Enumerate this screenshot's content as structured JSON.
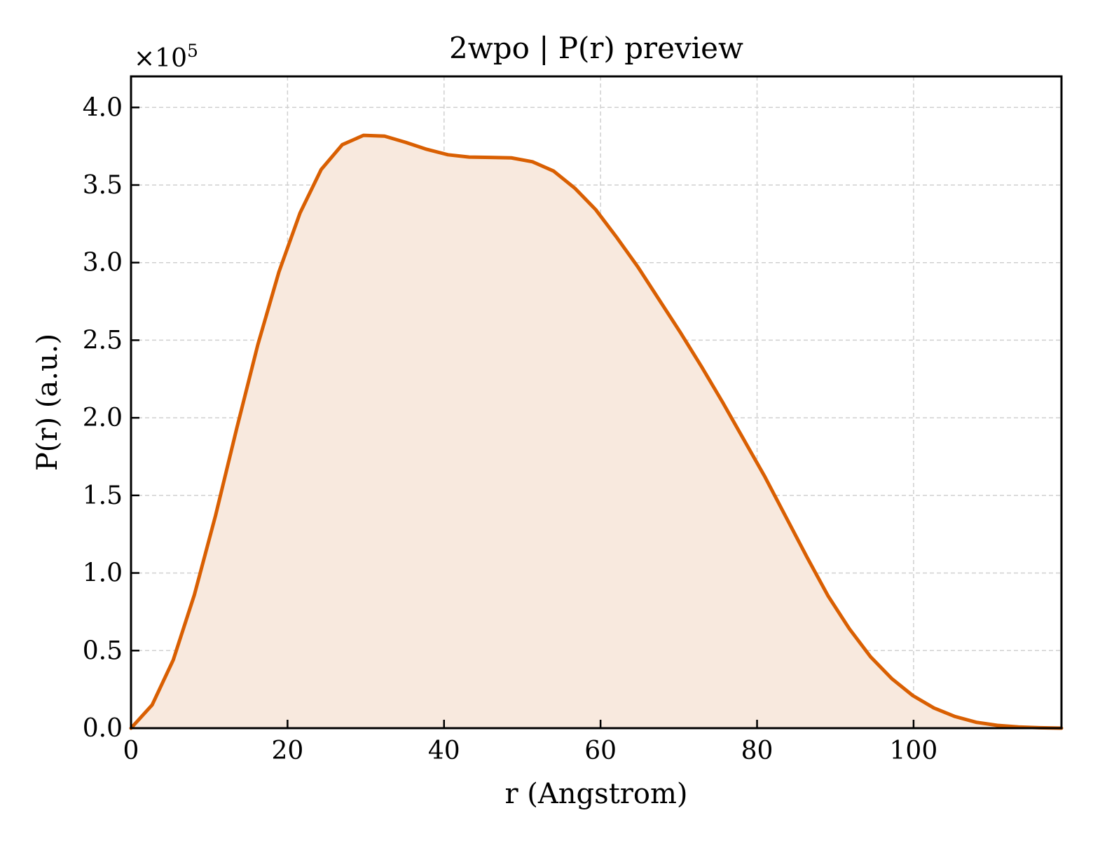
{
  "chart_data": {
    "type": "area",
    "title": "2wpo | P(r) preview",
    "xlabel": "r (Angstrom)",
    "ylabel": "P(r) (a.u.)",
    "y_multiplier_label": "×10",
    "y_multiplier_exponent": "5",
    "xlim": [
      0,
      118.9
    ],
    "ylim": [
      0,
      4.2
    ],
    "x_ticks": [
      0,
      20,
      40,
      60,
      80,
      100
    ],
    "x_tick_labels": [
      "0",
      "20",
      "40",
      "60",
      "80",
      "100"
    ],
    "y_ticks": [
      0.0,
      0.5,
      1.0,
      1.5,
      2.0,
      2.5,
      3.0,
      3.5,
      4.0
    ],
    "y_tick_labels": [
      "0.0",
      "0.5",
      "1.0",
      "1.5",
      "2.0",
      "2.5",
      "3.0",
      "3.5",
      "4.0"
    ],
    "grid": true,
    "line_color": "#d95f02",
    "fill_color": "#f8e9de",
    "series": [
      {
        "x": [
          0,
          2.7,
          5.4,
          8.1,
          10.8,
          13.5,
          16.2,
          18.9,
          21.6,
          24.3,
          27.0,
          29.7,
          32.4,
          35.1,
          37.8,
          40.5,
          43.2,
          45.9,
          48.6,
          51.3,
          54.0,
          56.7,
          59.4,
          62.1,
          64.8,
          67.5,
          70.2,
          72.9,
          75.6,
          78.3,
          81.0,
          83.7,
          86.4,
          89.1,
          91.8,
          94.5,
          97.2,
          99.9,
          102.6,
          105.3,
          108.0,
          110.7,
          113.4,
          116.1,
          118.9
        ],
        "values": [
          0.0,
          0.15,
          0.44,
          0.86,
          1.37,
          1.93,
          2.47,
          2.94,
          3.32,
          3.6,
          3.76,
          3.82,
          3.815,
          3.775,
          3.73,
          3.695,
          3.68,
          3.678,
          3.675,
          3.65,
          3.59,
          3.48,
          3.34,
          3.16,
          2.97,
          2.76,
          2.55,
          2.33,
          2.1,
          1.86,
          1.62,
          1.36,
          1.1,
          0.85,
          0.64,
          0.46,
          0.32,
          0.21,
          0.13,
          0.075,
          0.038,
          0.018,
          0.008,
          0.003,
          0.0
        ]
      }
    ]
  }
}
